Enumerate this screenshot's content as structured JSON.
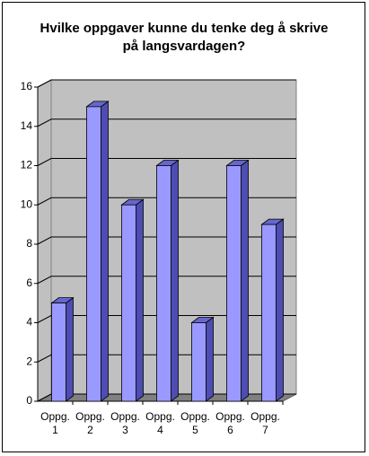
{
  "chart_data": {
    "type": "bar3d",
    "title": "Hvilke oppgaver kunne du tenke deg å skrive på langsvardagen?",
    "categories": [
      "Oppg. 1",
      "Oppg. 2",
      "Oppg. 3",
      "Oppg. 4",
      "Oppg. 5",
      "Oppg. 6",
      "Oppg. 7"
    ],
    "values": [
      5,
      15,
      10,
      12,
      4,
      12,
      9
    ],
    "color": "#9999ff",
    "ylim": [
      0,
      16
    ],
    "yticks": [
      0,
      2,
      4,
      6,
      8,
      10,
      12,
      14,
      16
    ],
    "grid": true
  }
}
